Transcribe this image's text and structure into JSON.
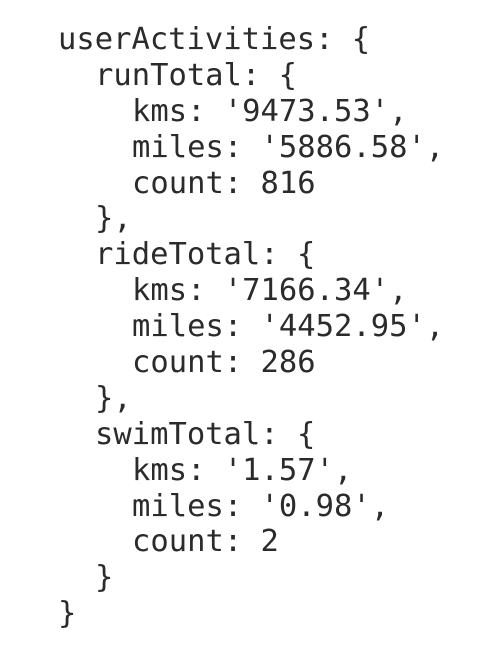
{
  "code": {
    "open": "userActivities: {",
    "blocks": [
      {
        "open": "runTotal: {",
        "lines": [
          "kms: '9473.53',",
          "miles: '5886.58',",
          "count: 816"
        ],
        "close": "},"
      },
      {
        "open": "rideTotal: {",
        "lines": [
          "kms: '7166.34',",
          "miles: '4452.95',",
          "count: 286"
        ],
        "close": "},"
      },
      {
        "open": "swimTotal: {",
        "lines": [
          "kms: '1.57',",
          "miles: '0.98',",
          "count: 2"
        ],
        "close": "}"
      }
    ],
    "close": "}"
  }
}
